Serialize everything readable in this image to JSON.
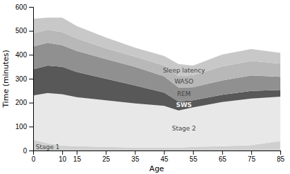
{
  "chart_data": {
    "type": "area",
    "stacked": true,
    "xlabel": "Age",
    "ylabel": "Time (minutes)",
    "x": [
      0,
      5,
      10,
      15,
      25,
      35,
      45,
      50,
      55,
      65,
      75,
      85
    ],
    "series": [
      {
        "name": "Stage 1",
        "color": "#d0d0d0",
        "values": [
          45,
          30,
          20,
          18,
          15,
          12,
          12,
          12,
          15,
          18,
          22,
          40
        ]
      },
      {
        "name": "Stage 2",
        "color": "#e8e8e8",
        "values": [
          185,
          210,
          215,
          205,
          195,
          185,
          175,
          155,
          165,
          185,
          195,
          185
        ]
      },
      {
        "name": "SWS",
        "color": "#585858",
        "values": [
          110,
          115,
          115,
          105,
          90,
          75,
          55,
          38,
          30,
          30,
          32,
          28
        ]
      },
      {
        "name": "REM",
        "color": "#909090",
        "values": [
          95,
          95,
          90,
          88,
          82,
          78,
          68,
          58,
          55,
          60,
          65,
          55
        ]
      },
      {
        "name": "WASO",
        "color": "#b8b8b8",
        "values": [
          55,
          55,
          55,
          52,
          45,
          42,
          45,
          48,
          50,
          58,
          60,
          55
        ]
      },
      {
        "name": "Sleep latency",
        "color": "#c8c8c8",
        "values": [
          60,
          50,
          60,
          52,
          45,
          38,
          40,
          50,
          40,
          50,
          50,
          45
        ]
      }
    ],
    "xlim": [
      0,
      85
    ],
    "xticks": [
      0,
      10,
      15,
      25,
      35,
      45,
      55,
      65,
      75,
      85
    ],
    "ylim": [
      0,
      600
    ],
    "yticks": [
      0,
      100,
      200,
      300,
      400,
      500,
      600
    ]
  }
}
